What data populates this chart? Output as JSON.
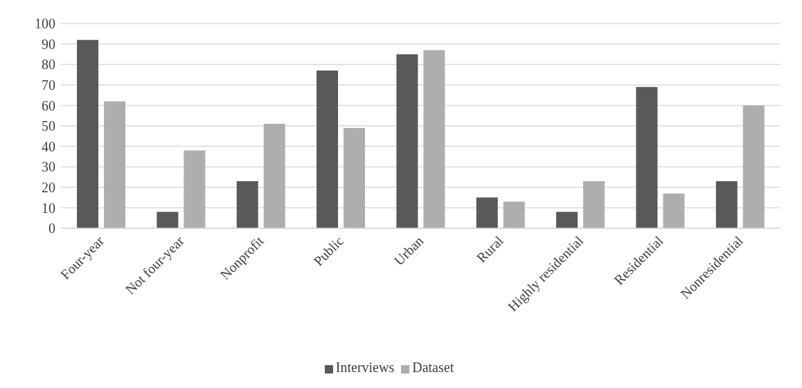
{
  "chart_data": {
    "type": "bar",
    "categories": [
      "Four-year",
      "Not four-year",
      "Nonprofit",
      "Public",
      "Urban",
      "Rural",
      "Highly residential",
      "Residential",
      "Nonresidential"
    ],
    "series": [
      {
        "name": "Interviews",
        "color": "#595959",
        "values": [
          92,
          8,
          23,
          77,
          85,
          15,
          8,
          69,
          23
        ]
      },
      {
        "name": "Dataset",
        "color": "#aeaeae",
        "values": [
          62,
          38,
          51,
          49,
          87,
          13,
          23,
          17,
          60
        ]
      }
    ],
    "ylim": [
      0,
      100
    ],
    "yticks": [
      0,
      10,
      20,
      30,
      40,
      50,
      60,
      70,
      80,
      90,
      100
    ],
    "grid": "y",
    "legend": "bottom"
  }
}
